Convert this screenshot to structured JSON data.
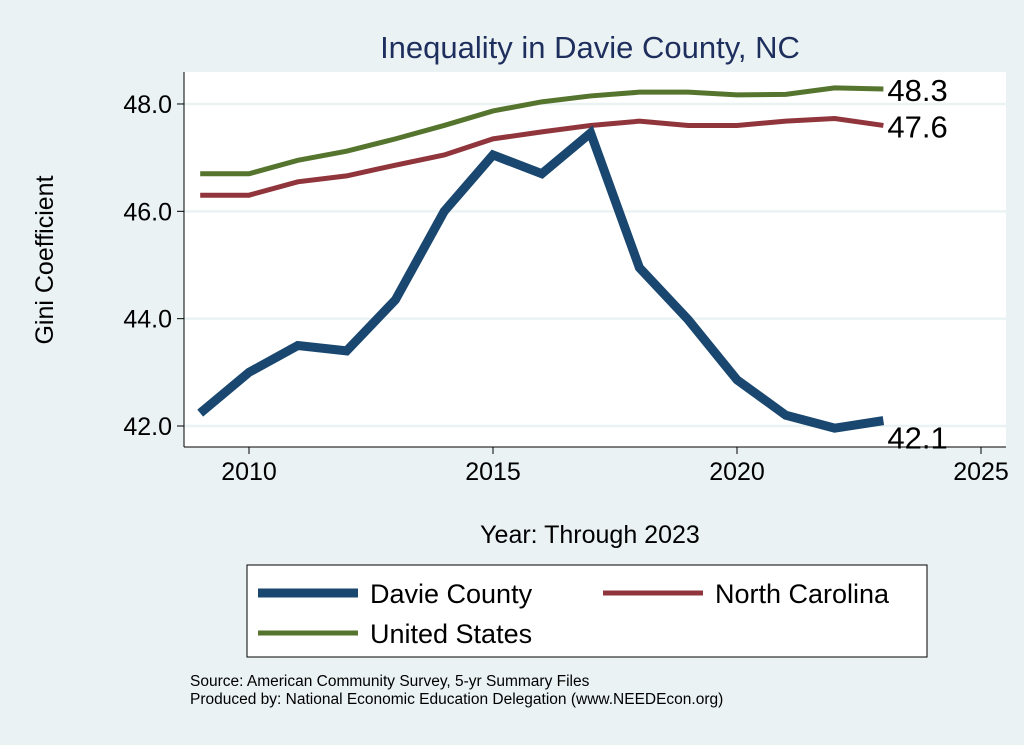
{
  "chart_data": {
    "type": "line",
    "title": "Inequality in Davie County, NC",
    "xlabel": "Year: Through 2023",
    "ylabel": "Gini Coefficient",
    "xlim": [
      2008.7,
      2026
    ],
    "ylim": [
      41.6,
      48.6
    ],
    "xticks": [
      2010,
      2015,
      2020,
      2025
    ],
    "yticks": [
      42.0,
      44.0,
      46.0,
      48.0
    ],
    "ytick_labels": [
      "42.0",
      "44.0",
      "46.0",
      "48.0"
    ],
    "grid": true,
    "legend_position": "bottom",
    "x": [
      2009,
      2010,
      2011,
      2012,
      2013,
      2014,
      2015,
      2016,
      2017,
      2018,
      2019,
      2020,
      2021,
      2022,
      2023
    ],
    "series": [
      {
        "name": "Davie County",
        "color": "#1a476f",
        "values": [
          42.24,
          43.0,
          43.5,
          43.4,
          44.35,
          46.0,
          47.05,
          46.7,
          47.46,
          44.95,
          43.98,
          42.86,
          42.2,
          41.96,
          42.1
        ],
        "end_label": "42.1"
      },
      {
        "name": "North Carolina",
        "color": "#90353b",
        "values": [
          46.3,
          46.3,
          46.55,
          46.66,
          46.86,
          47.05,
          47.35,
          47.48,
          47.6,
          47.68,
          47.6,
          47.6,
          47.68,
          47.73,
          47.6
        ],
        "end_label": "47.6"
      },
      {
        "name": "United States",
        "color": "#55752f",
        "values": [
          46.7,
          46.7,
          46.95,
          47.12,
          47.35,
          47.6,
          47.87,
          48.04,
          48.15,
          48.22,
          48.22,
          48.17,
          48.18,
          48.3,
          48.28
        ],
        "end_label": "48.3"
      }
    ]
  },
  "notes": {
    "source": "Source: American Community Survey, 5-yr Summary Files",
    "produced": "Produced by: National Economic Education Delegation (www.NEEDEcon.org)"
  }
}
